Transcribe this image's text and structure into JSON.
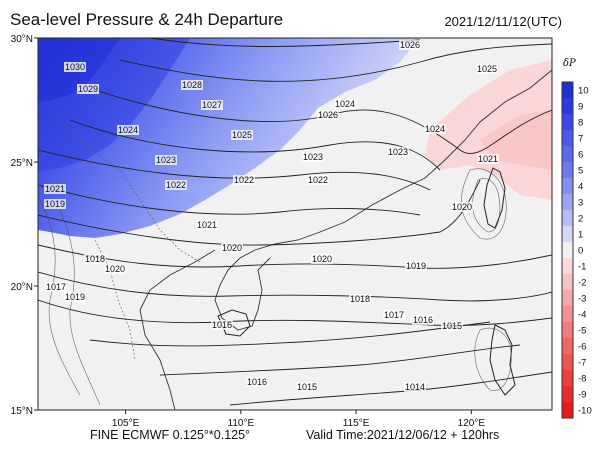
{
  "header": {
    "title": "Sea-level Pressure & 24h Departure",
    "datetime": "2021/12/11/12(UTC)"
  },
  "footer": {
    "model": "FINE ECMWF 0.125°*0.125°",
    "valid_time": "Valid Time:2021/12/06/12 + 120hrs"
  },
  "axes": {
    "lat_ticks": [
      {
        "label": "30°N",
        "lat": 30
      },
      {
        "label": "25°N",
        "lat": 25
      },
      {
        "label": "20°N",
        "lat": 20
      },
      {
        "label": "15°N",
        "lat": 15
      }
    ],
    "lon_ticks": [
      {
        "label": "105°E",
        "lon": 105
      },
      {
        "label": "110°E",
        "lon": 110
      },
      {
        "label": "115°E",
        "lon": 115
      },
      {
        "label": "120°E",
        "lon": 120
      }
    ]
  },
  "colorbar": {
    "title": "δP",
    "levels": [
      {
        "label": "10",
        "color": "#1f2fd6"
      },
      {
        "label": "9",
        "color": "#2b3be0"
      },
      {
        "label": "8",
        "color": "#3a4ae6"
      },
      {
        "label": "7",
        "color": "#4a5aea"
      },
      {
        "label": "6",
        "color": "#5a6aed"
      },
      {
        "label": "5",
        "color": "#6c7bf0"
      },
      {
        "label": "4",
        "color": "#8190f2"
      },
      {
        "label": "3",
        "color": "#9aa6f4"
      },
      {
        "label": "2",
        "color": "#b5bef7"
      },
      {
        "label": "1",
        "color": "#d3d8fa"
      },
      {
        "label": "0",
        "color": "#f1f1f1"
      },
      {
        "label": "-1",
        "color": "#fbd9d9"
      },
      {
        "label": "-2",
        "color": "#f9c1c1"
      },
      {
        "label": "-3",
        "color": "#f7a9a9"
      },
      {
        "label": "-4",
        "color": "#f59393"
      },
      {
        "label": "-5",
        "color": "#f37c7c"
      },
      {
        "label": "-6",
        "color": "#f16767"
      },
      {
        "label": "-7",
        "color": "#ef5252"
      },
      {
        "label": "-8",
        "color": "#ed3e3e"
      },
      {
        "label": "-9",
        "color": "#eb2b2b"
      },
      {
        "label": "-10",
        "color": "#e81a1a"
      }
    ]
  },
  "isobars": [
    {
      "value": 1026,
      "label": "1026"
    },
    {
      "value": 1025,
      "label": "1025"
    },
    {
      "value": 1024,
      "label": "1024"
    },
    {
      "value": 1023,
      "label": "1023"
    },
    {
      "value": 1022,
      "label": "1022"
    },
    {
      "value": 1021,
      "label": "1021"
    },
    {
      "value": 1020,
      "label": "1020"
    },
    {
      "value": 1019,
      "label": "1019"
    },
    {
      "value": 1018,
      "label": "1018"
    },
    {
      "value": 1017,
      "label": "1017"
    },
    {
      "value": 1016,
      "label": "1016"
    },
    {
      "value": 1015,
      "label": "1015"
    },
    {
      "value": 1014,
      "label": "1014"
    }
  ],
  "extra_labels": [
    "1030",
    "1029",
    "1028",
    "1027"
  ]
}
